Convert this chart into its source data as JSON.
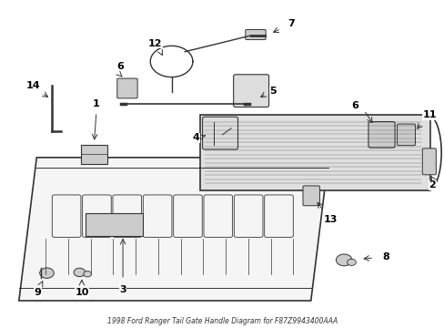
{
  "title": "1998 Ford Ranger Tail Gate Handle Diagram for F87Z9943400AAA",
  "bg_color": "#ffffff",
  "line_color": "#333333",
  "label_color": "#000000",
  "label_fontsize": 8,
  "title_fontsize": 5.5,
  "fig_width": 4.89,
  "fig_height": 3.6,
  "dpi": 100
}
